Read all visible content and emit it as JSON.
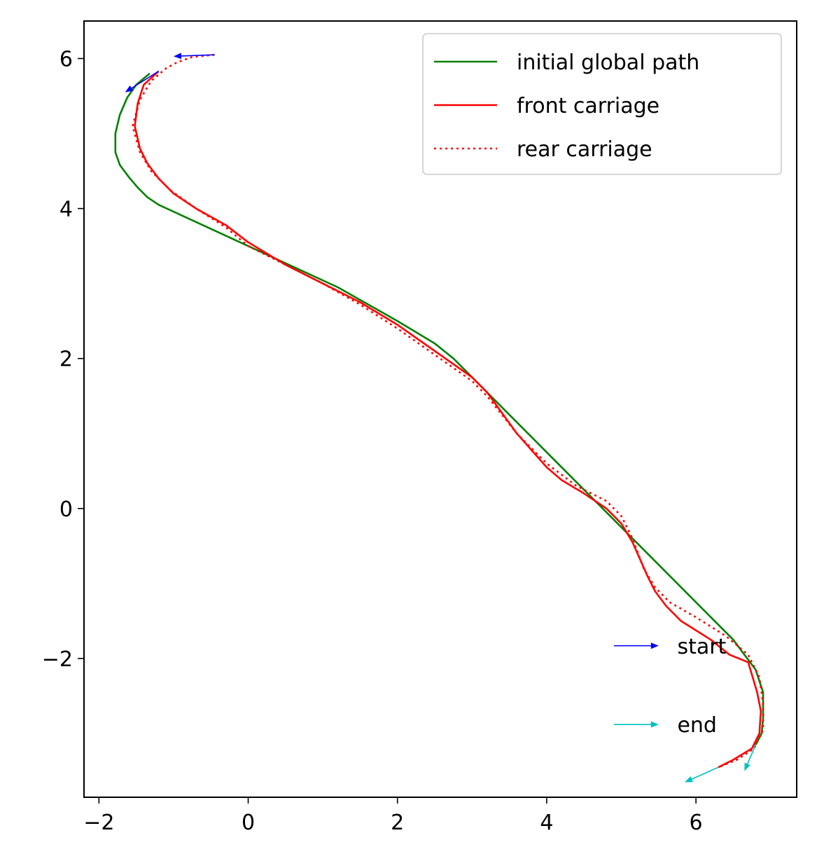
{
  "chart_data": {
    "type": "line",
    "title": "",
    "xlabel": "",
    "ylabel": "",
    "xlim": [
      -2.2,
      7.35
    ],
    "ylim": [
      -3.85,
      6.5
    ],
    "xticks": [
      -2,
      0,
      2,
      4,
      6
    ],
    "yticks": [
      -2,
      0,
      2,
      4,
      6
    ],
    "xtick_labels": [
      "−2",
      "0",
      "2",
      "4",
      "6"
    ],
    "ytick_labels": [
      "−2",
      "0",
      "2",
      "4",
      "6"
    ],
    "grid": false,
    "legend_position": "top-right",
    "series": [
      {
        "name": "initial global path",
        "color": "#008000",
        "style": "solid",
        "points": [
          [
            -1.32,
            5.8
          ],
          [
            -1.5,
            5.65
          ],
          [
            -1.62,
            5.48
          ],
          [
            -1.72,
            5.25
          ],
          [
            -1.78,
            5.0
          ],
          [
            -1.78,
            4.75
          ],
          [
            -1.72,
            4.58
          ],
          [
            -1.6,
            4.42
          ],
          [
            -1.48,
            4.28
          ],
          [
            -1.35,
            4.15
          ],
          [
            -1.2,
            4.05
          ],
          [
            0.0,
            3.5
          ],
          [
            1.2,
            2.95
          ],
          [
            2.0,
            2.5
          ],
          [
            2.5,
            2.2
          ],
          [
            2.75,
            2.0
          ],
          [
            3.2,
            1.55
          ],
          [
            4.5,
            0.25
          ],
          [
            5.5,
            -0.75
          ],
          [
            6.5,
            -1.75
          ],
          [
            6.8,
            -2.15
          ],
          [
            6.9,
            -2.45
          ],
          [
            6.9,
            -2.8
          ],
          [
            6.88,
            -3.0
          ],
          [
            6.8,
            -3.15
          ]
        ]
      },
      {
        "name": "front carriage",
        "color": "#ff0000",
        "style": "solid",
        "points": [
          [
            -1.2,
            5.83
          ],
          [
            -1.4,
            5.65
          ],
          [
            -1.48,
            5.4
          ],
          [
            -1.52,
            5.1
          ],
          [
            -1.45,
            4.8
          ],
          [
            -1.35,
            4.6
          ],
          [
            -1.2,
            4.4
          ],
          [
            -1.0,
            4.2
          ],
          [
            -0.7,
            4.0
          ],
          [
            -0.3,
            3.78
          ],
          [
            0.0,
            3.55
          ],
          [
            0.5,
            3.25
          ],
          [
            1.0,
            3.0
          ],
          [
            1.5,
            2.75
          ],
          [
            2.0,
            2.45
          ],
          [
            2.5,
            2.1
          ],
          [
            3.0,
            1.75
          ],
          [
            3.2,
            1.55
          ],
          [
            3.6,
            1.0
          ],
          [
            4.0,
            0.55
          ],
          [
            4.2,
            0.38
          ],
          [
            4.5,
            0.2
          ],
          [
            4.8,
            0.0
          ],
          [
            5.0,
            -0.2
          ],
          [
            5.15,
            -0.45
          ],
          [
            5.35,
            -0.9
          ],
          [
            5.45,
            -1.1
          ],
          [
            5.6,
            -1.3
          ],
          [
            5.8,
            -1.5
          ],
          [
            6.2,
            -1.75
          ],
          [
            6.45,
            -1.95
          ],
          [
            6.7,
            -2.05
          ],
          [
            6.82,
            -2.45
          ],
          [
            6.87,
            -2.7
          ],
          [
            6.85,
            -3.0
          ],
          [
            6.75,
            -3.2
          ],
          [
            6.5,
            -3.35
          ],
          [
            6.3,
            -3.45
          ]
        ]
      },
      {
        "name": "rear carriage",
        "color": "#ff0000",
        "style": "dotted",
        "points": [
          [
            -0.45,
            6.05
          ],
          [
            -0.75,
            6.02
          ],
          [
            -0.95,
            5.95
          ],
          [
            -1.1,
            5.87
          ],
          [
            -1.3,
            5.7
          ],
          [
            -1.45,
            5.45
          ],
          [
            -1.55,
            5.1
          ],
          [
            -1.45,
            4.75
          ],
          [
            -1.3,
            4.5
          ],
          [
            -1.05,
            4.25
          ],
          [
            -0.7,
            4.0
          ],
          [
            -0.3,
            3.75
          ],
          [
            0.0,
            3.5
          ],
          [
            0.5,
            3.25
          ],
          [
            1.0,
            3.0
          ],
          [
            1.5,
            2.72
          ],
          [
            2.0,
            2.4
          ],
          [
            2.5,
            2.05
          ],
          [
            3.0,
            1.7
          ],
          [
            3.2,
            1.5
          ],
          [
            3.6,
            1.0
          ],
          [
            4.0,
            0.6
          ],
          [
            4.4,
            0.3
          ],
          [
            4.8,
            0.1
          ],
          [
            5.0,
            -0.1
          ],
          [
            5.15,
            -0.4
          ],
          [
            5.3,
            -0.8
          ],
          [
            5.45,
            -1.05
          ],
          [
            5.65,
            -1.25
          ],
          [
            6.0,
            -1.45
          ],
          [
            6.4,
            -1.7
          ],
          [
            6.7,
            -1.95
          ],
          [
            6.85,
            -2.25
          ],
          [
            6.9,
            -2.6
          ],
          [
            6.9,
            -2.95
          ],
          [
            6.78,
            -3.2
          ],
          [
            6.55,
            -3.35
          ],
          [
            6.3,
            -3.45
          ]
        ]
      }
    ],
    "arrows": [
      {
        "from": [
          -0.45,
          6.05
        ],
        "to": [
          -1.0,
          6.03
        ],
        "color": "#0000ff"
      },
      {
        "from": [
          -1.2,
          5.83
        ],
        "to": [
          -1.65,
          5.55
        ],
        "color": "#0000ff"
      },
      {
        "from": [
          6.3,
          -3.45
        ],
        "to": [
          5.85,
          -3.65
        ],
        "color": "#00bfbf"
      },
      {
        "from": [
          6.8,
          -3.15
        ],
        "to": [
          6.65,
          -3.5
        ],
        "color": "#00bfbf"
      }
    ],
    "annotations": [
      {
        "label": "start",
        "color": "#0000ff",
        "arrow_from": [
          4.9,
          -1.83
        ],
        "arrow_to": [
          5.5,
          -1.83
        ],
        "text_at": [
          5.75,
          -1.83
        ]
      },
      {
        "label": "end",
        "color": "#00bfbf",
        "arrow_from": [
          4.9,
          -2.88
        ],
        "arrow_to": [
          5.5,
          -2.88
        ],
        "text_at": [
          5.75,
          -2.88
        ]
      }
    ]
  }
}
